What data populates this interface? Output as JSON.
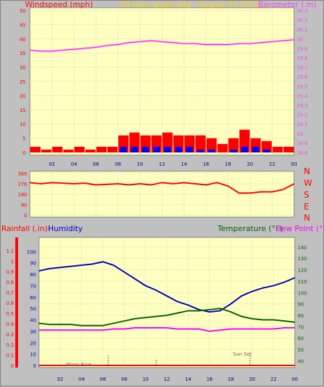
{
  "header": {
    "title": "24 hour graph day - August 24 2022",
    "left_label": "Windspeed (mph)",
    "right_label": "Barometer (.in)"
  },
  "panel3": {
    "rain_label": "Rainfall (.in)",
    "humidity_label": "Humidity",
    "temp_label": "Temperature (°F)",
    "dew_label": "Dew Point (°F)"
  },
  "compass": [
    "N",
    "W",
    "S",
    "E",
    "N"
  ],
  "events": {
    "moon_rise": "Moon Rise",
    "sun_set": "Sun Set"
  },
  "colors": {
    "plot_bg": "#ffffc0",
    "frame_bg": "#c0c0c0",
    "grid": "#c8c8c8",
    "wind": "#ff0000",
    "gust": "#0000ff",
    "green": "#00a000",
    "barometer": "#ff40ff",
    "title": "#ffd700",
    "rain": "#ff0000",
    "humidity": "#0000c0",
    "temperature": "#006400",
    "dewpoint": "#ff00ff"
  },
  "chart_data": [
    {
      "type": "bar",
      "name": "wind-barometer",
      "x_ticks": [
        "02",
        "04",
        "06",
        "08",
        "10",
        "12",
        "14",
        "16",
        "18",
        "20",
        "22",
        "00"
      ],
      "xlim": [
        0,
        24
      ],
      "y_left_ticks": [
        "0",
        "5",
        "10",
        "15",
        "20",
        "25",
        "30",
        "35",
        "40",
        "45",
        "50"
      ],
      "y_left_lim": [
        0,
        50
      ],
      "y_right_ticks": [
        "28.8",
        "28.9",
        "29",
        "29.1",
        "29.2",
        "29.3",
        "29.4",
        "29.5",
        "29.6",
        "29.7",
        "29.8",
        "29.9",
        "30",
        "30.1",
        "30.2",
        "30.3"
      ],
      "y_right_lim": [
        28.8,
        30.3
      ],
      "windspeed_hourly": [
        2,
        1,
        2,
        1,
        2,
        1,
        2,
        2,
        6,
        7,
        6,
        6,
        7,
        6,
        6,
        6,
        5,
        3,
        5,
        8,
        5,
        4,
        2,
        2
      ],
      "gust_hourly": [
        0,
        0,
        0,
        0,
        0,
        0,
        0,
        0,
        2,
        2,
        2,
        2,
        2,
        2,
        2,
        1,
        1,
        0,
        1,
        2,
        2,
        1,
        0,
        0
      ],
      "barometer": {
        "x": [
          0,
          1,
          2,
          3,
          4,
          5,
          6,
          7,
          8,
          9,
          10,
          11,
          12,
          13,
          14,
          15,
          16,
          17,
          18,
          19,
          20,
          21,
          22,
          23,
          24
        ],
        "y": [
          29.88,
          29.87,
          29.87,
          29.88,
          29.89,
          29.9,
          29.91,
          29.93,
          29.94,
          29.96,
          29.97,
          29.98,
          29.97,
          29.96,
          29.95,
          29.95,
          29.94,
          29.94,
          29.94,
          29.95,
          29.95,
          29.96,
          29.97,
          29.98,
          29.99
        ]
      }
    },
    {
      "type": "line",
      "name": "wind-direction",
      "x_ticks": [
        "02",
        "04",
        "06",
        "08",
        "10",
        "12",
        "14",
        "16",
        "18",
        "20",
        "22",
        "00"
      ],
      "y_ticks": [
        "0",
        "90",
        "180",
        "270",
        "360"
      ],
      "ylim": [
        0,
        360
      ],
      "x": [
        0,
        1,
        2,
        3,
        4,
        5,
        6,
        7,
        8,
        9,
        10,
        11,
        12,
        13,
        14,
        15,
        16,
        17,
        18,
        19,
        20,
        21,
        22,
        23,
        24
      ],
      "y": [
        280,
        270,
        280,
        275,
        270,
        275,
        260,
        265,
        270,
        260,
        270,
        260,
        280,
        270,
        280,
        270,
        260,
        280,
        250,
        190,
        190,
        200,
        200,
        220,
        270
      ]
    },
    {
      "type": "line",
      "name": "rain-humidity-temperature",
      "x_ticks": [
        "02",
        "04",
        "06",
        "08",
        "10",
        "12",
        "14",
        "16",
        "18",
        "20",
        "22",
        "00"
      ],
      "rain_ticks": [
        "0",
        "0.1",
        "0.2",
        "0.3",
        "0.4",
        "0.5",
        "0.6",
        "0.7",
        "0.8",
        "0.9",
        "1",
        "1.1"
      ],
      "rain_lim": [
        0,
        1.2
      ],
      "humidity_ticks": [
        "0",
        "10",
        "20",
        "30",
        "40",
        "50",
        "60",
        "70",
        "80",
        "90",
        "100"
      ],
      "humidity_lim": [
        0,
        110
      ],
      "temp_ticks": [
        "40",
        "50",
        "60",
        "70",
        "80",
        "90",
        "100",
        "110",
        "120",
        "130",
        "140"
      ],
      "temp_lim": [
        36,
        146
      ],
      "series": [
        {
          "name": "Humidity",
          "x": [
            0,
            1,
            2,
            3,
            4,
            5,
            6,
            7,
            8,
            9,
            10,
            11,
            12,
            13,
            14,
            15,
            16,
            17,
            18,
            19,
            20,
            21,
            22,
            23,
            24
          ],
          "y": [
            83,
            85,
            86,
            87,
            88,
            89,
            91,
            88,
            82,
            76,
            70,
            66,
            61,
            56,
            53,
            49,
            47,
            48,
            54,
            61,
            65,
            68,
            70,
            73,
            77
          ]
        },
        {
          "name": "Temperature",
          "x": [
            0,
            1,
            2,
            3,
            4,
            5,
            6,
            7,
            8,
            9,
            10,
            11,
            12,
            13,
            14,
            15,
            16,
            17,
            18,
            19,
            20,
            21,
            22,
            23,
            24
          ],
          "y": [
            73,
            72,
            72,
            72,
            71,
            71,
            71,
            73,
            75,
            77,
            78,
            79,
            80,
            82,
            84,
            84,
            85,
            86,
            83,
            79,
            77,
            76,
            76,
            75,
            74
          ]
        },
        {
          "name": "Dew Point",
          "x": [
            0,
            1,
            2,
            3,
            4,
            5,
            6,
            7,
            8,
            9,
            10,
            11,
            12,
            13,
            14,
            15,
            16,
            17,
            18,
            19,
            20,
            21,
            22,
            23,
            24
          ],
          "y": [
            67,
            67,
            67,
            67,
            67,
            67,
            67,
            68,
            68,
            69,
            69,
            69,
            69,
            68,
            68,
            68,
            66,
            67,
            68,
            68,
            68,
            68,
            68,
            69,
            69
          ]
        },
        {
          "name": "Rainfall",
          "x": [
            0,
            24
          ],
          "y": [
            0,
            0
          ]
        }
      ],
      "event_markers": [
        {
          "label_key": "moon_rise",
          "x": 6.5
        },
        {
          "label_key": "sun_set",
          "x": 19.8
        }
      ],
      "extra_marker_x": 11
    }
  ]
}
